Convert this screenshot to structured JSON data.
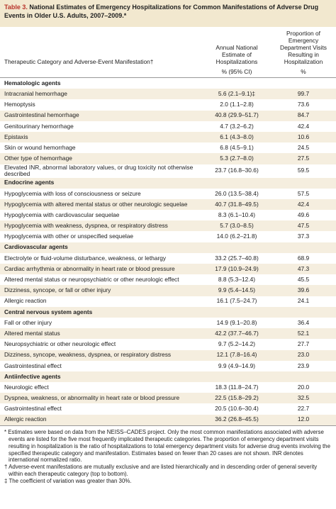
{
  "title": {
    "label": "Table 3.",
    "text": "National Estimates of Emergency Hospitalizations for Common Manifestations of Adverse Drug Events in Older U.S. Adults, 2007–2009.*"
  },
  "header": {
    "columns": [
      "Therapeutic Category and Adverse-Event Manifestation†",
      "Annual National Estimate of Hospitalizations",
      "Proportion of Emergency Department Visits Resulting in Hospitalization"
    ],
    "units": [
      "% (95% CI)",
      "%"
    ]
  },
  "sections": [
    {
      "heading": "Hematologic agents",
      "rows": [
        [
          "Intracranial hemorrhage",
          "5.6 (2.1–9.1)‡",
          "99.7"
        ],
        [
          "Hemoptysis",
          "2.0 (1.1–2.8)",
          "73.6"
        ],
        [
          "Gastrointestinal hemorrhage",
          "40.8 (29.9–51.7)",
          "84.7"
        ],
        [
          "Genitourinary hemorrhage",
          "4.7 (3.2–6.2)",
          "42.4"
        ],
        [
          "Epistaxis",
          "6.1 (4.3–8.0)",
          "10.6"
        ],
        [
          "Skin or wound hemorrhage",
          "6.8 (4.5–9.1)",
          "24.5"
        ],
        [
          "Other type of hemorrhage",
          "5.3 (2.7–8.0)",
          "27.5"
        ],
        [
          "Elevated INR, abnormal laboratory values, or drug toxicity not otherwise described",
          "23.7 (16.8–30.6)",
          "59.5"
        ]
      ]
    },
    {
      "heading": "Endocrine agents",
      "rows": [
        [
          "Hypoglycemia with loss of consciousness or seizure",
          "26.0 (13.5–38.4)",
          "57.5"
        ],
        [
          "Hypoglycemia with altered mental status or other neurologic sequelae",
          "40.7 (31.8–49.5)",
          "42.4"
        ],
        [
          "Hypoglycemia with cardiovascular sequelae",
          "8.3 (6.1–10.4)",
          "49.6"
        ],
        [
          "Hypoglycemia with weakness, dyspnea, or respiratory distress",
          "5.7 (3.0–8.5)",
          "47.5"
        ],
        [
          "Hypoglycemia with other or unspecified sequelae",
          "14.0 (6.2–21.8)",
          "37.3"
        ]
      ]
    },
    {
      "heading": "Cardiovascular agents",
      "rows": [
        [
          "Electrolyte or fluid-volume disturbance, weakness, or lethargy",
          "33.2 (25.7–40.8)",
          "68.9"
        ],
        [
          "Cardiac arrhythmia or abnormality in heart rate or blood pressure",
          "17.9 (10.9–24.9)",
          "47.3"
        ],
        [
          "Altered mental status or neuropsychiatric or other neurologic effect",
          "8.8 (5.3–12.4)",
          "45.5"
        ],
        [
          "Dizziness, syncope, or fall or other injury",
          "9.9 (5.4–14.5)",
          "39.6"
        ],
        [
          "Allergic reaction",
          "16.1 (7.5–24.7)",
          "24.1"
        ]
      ]
    },
    {
      "heading": "Central nervous system agents",
      "rows": [
        [
          "Fall or other injury",
          "14.9 (9.1–20.8)",
          "36.4"
        ],
        [
          "Altered mental status",
          "42.2 (37.7–46.7)",
          "52.1"
        ],
        [
          "Neuropsychiatric or other neurologic effect",
          "9.7 (5.2–14.2)",
          "27.7"
        ],
        [
          "Dizziness, syncope, weakness, dyspnea, or respiratory distress",
          "12.1 (7.8–16.4)",
          "23.0"
        ],
        [
          "Gastrointestinal effect",
          "9.9 (4.9–14.9)",
          "23.9"
        ]
      ]
    },
    {
      "heading": "Antiinfective agents",
      "rows": [
        [
          "Neurologic effect",
          "18.3 (11.8–24.7)",
          "20.0"
        ],
        [
          "Dyspnea, weakness, or abnormality in heart rate or blood pressure",
          "22.5 (15.8–29.2)",
          "32.5"
        ],
        [
          "Gastrointestinal effect",
          "20.5 (10.6–30.4)",
          "22.7"
        ],
        [
          "Allergic reaction",
          "36.2 (26.8–45.5)",
          "12.0"
        ]
      ]
    }
  ],
  "footnotes": [
    "* Estimates were based on data from the NEISS–CADES project. Only the most common manifestations associated with adverse events are listed for the five most frequently implicated therapeutic categories. The proportion of emergency department visits resulting in hospitalization is the ratio of hospitalizations to total emergency department visits for adverse drug events involving the specified therapeutic category and manifestation. Estimates based on fewer than 20 cases are not shown. INR denotes international normalized ratio.",
    "† Adverse-event manifestations are mutually exclusive and are listed hierarchically and in descending order of general severity within each therapeutic category (top to bottom).",
    "‡ The coefficient of variation was greater than 30%."
  ]
}
